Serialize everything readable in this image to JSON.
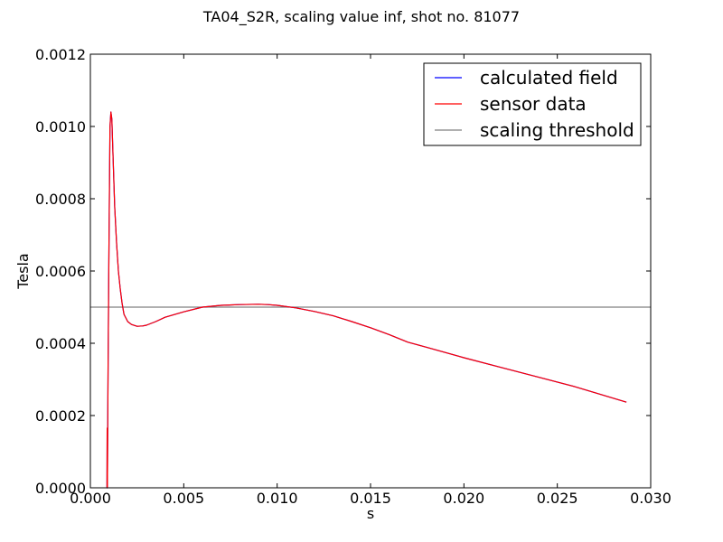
{
  "chart_data": {
    "type": "line",
    "title": "TA04_S2R, scaling value inf, shot no. 81077",
    "xlabel": "s",
    "ylabel": "Tesla",
    "xlim": [
      0.0,
      0.03
    ],
    "ylim": [
      0.0,
      0.0012
    ],
    "x_ticks": [
      "0.000",
      "0.005",
      "0.010",
      "0.015",
      "0.020",
      "0.025",
      "0.030"
    ],
    "y_ticks": [
      "0.0000",
      "0.0002",
      "0.0004",
      "0.0006",
      "0.0008",
      "0.0010",
      "0.0012"
    ],
    "legend_position": "top-right",
    "grid": false,
    "series": [
      {
        "name": "calculated field",
        "color": "#0000ff",
        "x": [
          0.00087,
          0.00089,
          0.0009,
          0.00091,
          0.00095,
          0.001,
          0.00105,
          0.0011,
          0.00115,
          0.0012,
          0.00125,
          0.0013,
          0.0014,
          0.0015,
          0.0016,
          0.0017,
          0.0018,
          0.0019,
          0.002,
          0.0022,
          0.0025,
          0.0028,
          0.003,
          0.0035,
          0.004,
          0.005,
          0.006,
          0.007,
          0.008,
          0.009,
          0.0095,
          0.01,
          0.011,
          0.012,
          0.013,
          0.014,
          0.015,
          0.016,
          0.017,
          0.018,
          0.02,
          0.022,
          0.024,
          0.026,
          0.0287
        ],
        "y": [
          0.0,
          0.0,
          0.000165,
          0.0,
          0.00035,
          0.0007,
          0.001,
          0.00104,
          0.00102,
          0.00094,
          0.00086,
          0.00078,
          0.00068,
          0.0006,
          0.00055,
          0.00051,
          0.00048,
          0.00047,
          0.00046,
          0.000452,
          0.000447,
          0.000448,
          0.00045,
          0.00046,
          0.000472,
          0.000487,
          0.0005,
          0.000505,
          0.000507,
          0.000508,
          0.000507,
          0.000505,
          0.000498,
          0.000488,
          0.000476,
          0.00046,
          0.000443,
          0.000424,
          0.000403,
          0.000389,
          0.00036,
          0.000333,
          0.000306,
          0.000279,
          0.000237
        ]
      },
      {
        "name": "sensor data",
        "color": "#ff0000",
        "x": [
          0.00087,
          0.00089,
          0.0009,
          0.00091,
          0.00095,
          0.001,
          0.00105,
          0.0011,
          0.00115,
          0.0012,
          0.00125,
          0.0013,
          0.0014,
          0.0015,
          0.0016,
          0.0017,
          0.0018,
          0.0019,
          0.002,
          0.0022,
          0.0025,
          0.0028,
          0.003,
          0.0035,
          0.004,
          0.005,
          0.006,
          0.007,
          0.008,
          0.009,
          0.0095,
          0.01,
          0.011,
          0.012,
          0.013,
          0.014,
          0.015,
          0.016,
          0.017,
          0.018,
          0.02,
          0.022,
          0.024,
          0.026,
          0.0287
        ],
        "y": [
          0.0,
          0.0,
          0.000165,
          0.0,
          0.00035,
          0.0007,
          0.001,
          0.00104,
          0.00102,
          0.00094,
          0.00086,
          0.00078,
          0.00068,
          0.0006,
          0.00055,
          0.00051,
          0.00048,
          0.00047,
          0.00046,
          0.000452,
          0.000447,
          0.000448,
          0.00045,
          0.00046,
          0.000472,
          0.000487,
          0.0005,
          0.000505,
          0.000507,
          0.000508,
          0.000507,
          0.000505,
          0.000498,
          0.000488,
          0.000476,
          0.00046,
          0.000443,
          0.000424,
          0.000403,
          0.000389,
          0.00036,
          0.000333,
          0.000306,
          0.000279,
          0.000237
        ]
      },
      {
        "name": "scaling threshold",
        "color": "#808080",
        "x": [
          0.0,
          0.03
        ],
        "y": [
          0.0005,
          0.0005
        ]
      }
    ]
  }
}
